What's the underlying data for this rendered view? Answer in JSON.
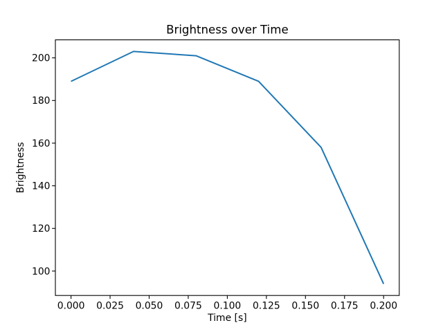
{
  "figure": {
    "background": "#ffffff"
  },
  "chart_data": {
    "type": "line",
    "title": "Brightness over Time",
    "xlabel": "Time [s]",
    "ylabel": "Brightness",
    "x": [
      0.0,
      0.04,
      0.08,
      0.12,
      0.16,
      0.2
    ],
    "y": [
      189,
      203,
      201,
      189,
      158,
      94
    ],
    "series": [
      {
        "name": "Brightness",
        "color": "#1f77b4"
      }
    ],
    "line_color": "#1f77b4",
    "axis_color": "#000000",
    "text_color": "#000000",
    "xlim": [
      -0.01,
      0.21
    ],
    "ylim": [
      88.55,
      208.45
    ],
    "x_tick_values": [
      0.0,
      0.025,
      0.05,
      0.075,
      0.1,
      0.125,
      0.15,
      0.175,
      0.2
    ],
    "x_tick_labels": [
      "0.000",
      "0.025",
      "0.050",
      "0.075",
      "0.100",
      "0.125",
      "0.150",
      "0.175",
      "0.200"
    ],
    "y_tick_values": [
      100,
      120,
      140,
      160,
      180,
      200
    ],
    "y_tick_labels": [
      "100",
      "120",
      "140",
      "160",
      "180",
      "200"
    ],
    "grid": false,
    "legend_position": "none"
  }
}
